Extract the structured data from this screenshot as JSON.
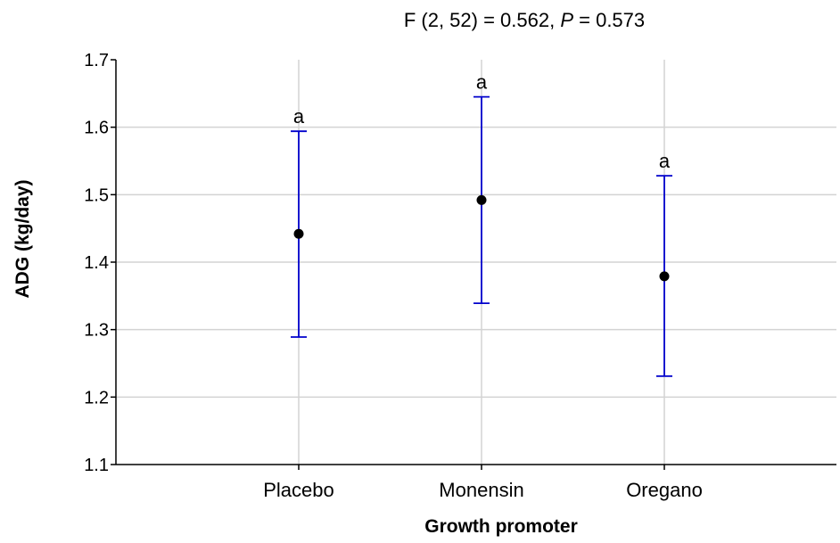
{
  "chart_data": {
    "type": "scatter",
    "title_parts": [
      "F (2, 52) = 0.562, ",
      "P",
      " = 0.573"
    ],
    "xlabel": "Growth promoter",
    "ylabel": "ADG (kg/day)",
    "categories": [
      "Placebo",
      "Monensin",
      "Oregano"
    ],
    "means": [
      1.442,
      1.492,
      1.379
    ],
    "upper": [
      1.594,
      1.645,
      1.528
    ],
    "lower": [
      1.289,
      1.339,
      1.231
    ],
    "letters": [
      "a",
      "a",
      "a"
    ],
    "ylim": [
      1.1,
      1.7
    ],
    "yticks": [
      1.1,
      1.2,
      1.3,
      1.4,
      1.5,
      1.6,
      1.7
    ],
    "ytick_labels": [
      "1.1",
      "1.2",
      "1.3",
      "1.4",
      "1.5",
      "1.6",
      "1.7"
    ],
    "grid": true,
    "colors": {
      "error_bar": "#0000cc",
      "marker": "#000000",
      "grid": "#d3d3d3"
    }
  }
}
